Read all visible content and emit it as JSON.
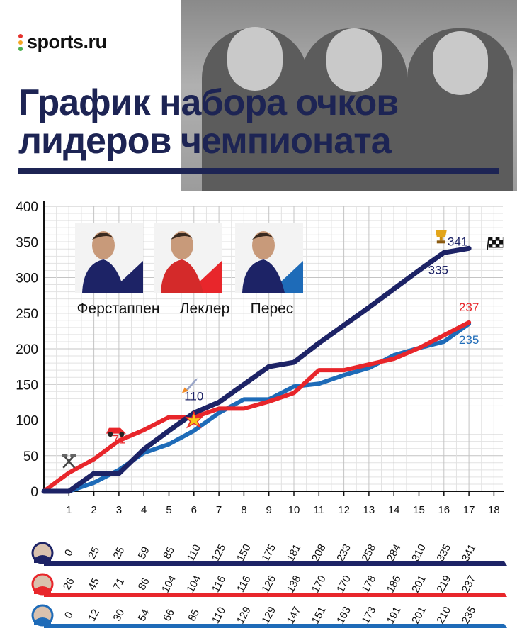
{
  "brand": {
    "name": "sports.ru",
    "dot_colors": [
      "#e5322d",
      "#f5a623",
      "#4caf50"
    ]
  },
  "title": {
    "line1": "График набора очков",
    "line2": "лидеров чемпионата"
  },
  "colors": {
    "verstappen": "#1d2366",
    "leclerc": "#e8262b",
    "perez": "#1e6bb8",
    "title": "#1d2454",
    "grid": "#d0d0d0"
  },
  "chart_data": {
    "type": "line",
    "x": [
      0,
      1,
      2,
      3,
      4,
      5,
      6,
      7,
      8,
      9,
      10,
      11,
      12,
      13,
      14,
      15,
      16,
      17
    ],
    "xticks": [
      1,
      2,
      3,
      4,
      5,
      6,
      7,
      8,
      9,
      10,
      11,
      12,
      13,
      14,
      15,
      16,
      17,
      18
    ],
    "yticks": [
      0,
      50,
      100,
      150,
      200,
      250,
      300,
      350,
      400
    ],
    "xlim": [
      0,
      18
    ],
    "ylim": [
      0,
      400
    ],
    "grid": true,
    "legend": "top-left",
    "series": [
      {
        "name": "Ферстаппен",
        "key": "verstappen",
        "values": [
          0,
          0,
          25,
          25,
          59,
          85,
          110,
          125,
          150,
          175,
          181,
          208,
          233,
          258,
          284,
          310,
          335,
          341
        ]
      },
      {
        "name": "Леклер",
        "key": "leclerc",
        "values": [
          0,
          26,
          45,
          71,
          86,
          104,
          104,
          116,
          116,
          126,
          138,
          170,
          170,
          178,
          186,
          201,
          219,
          237
        ]
      },
      {
        "name": "Перес",
        "key": "perez",
        "values": [
          0,
          0,
          12,
          30,
          54,
          66,
          85,
          110,
          129,
          129,
          147,
          151,
          163,
          173,
          191,
          201,
          210,
          235
        ]
      }
    ],
    "annotations": [
      {
        "x": 3,
        "y": 71,
        "text": "71",
        "key": "leclerc",
        "icon": "ferrari-car-icon"
      },
      {
        "x": 6,
        "y": 110,
        "text": "110",
        "key": "verstappen",
        "icon": "rocket-icon"
      },
      {
        "x": 16,
        "y": 335,
        "text": "335",
        "key": "verstappen",
        "icon": "trophy-icon"
      },
      {
        "x": 17,
        "y": 341,
        "text": "341",
        "key": "verstappen",
        "icon": "checkered-flag-icon"
      },
      {
        "x": 17,
        "y": 237,
        "text": "237",
        "key": "leclerc"
      },
      {
        "x": 17,
        "y": 235,
        "text": "235",
        "key": "perez"
      },
      {
        "x": 1,
        "y": 26,
        "text": "",
        "icon": "hammer-icon"
      },
      {
        "x": 6,
        "y": 100,
        "text": "",
        "icon": "crash-icon"
      }
    ],
    "table": [
      {
        "key": "verstappen",
        "values": [
          "0",
          "25",
          "25",
          "59",
          "85",
          "110",
          "125",
          "150",
          "175",
          "181",
          "208",
          "233",
          "258",
          "284",
          "310",
          "335",
          "341"
        ]
      },
      {
        "key": "leclerc",
        "values": [
          "26",
          "45",
          "71",
          "86",
          "104",
          "104",
          "116",
          "116",
          "126",
          "138",
          "170",
          "170",
          "178",
          "186",
          "201",
          "219",
          "237"
        ]
      },
      {
        "key": "perez",
        "values": [
          "0",
          "12",
          "30",
          "54",
          "66",
          "85",
          "110",
          "129",
          "129",
          "147",
          "151",
          "163",
          "173",
          "191",
          "201",
          "210",
          "235"
        ]
      }
    ]
  }
}
